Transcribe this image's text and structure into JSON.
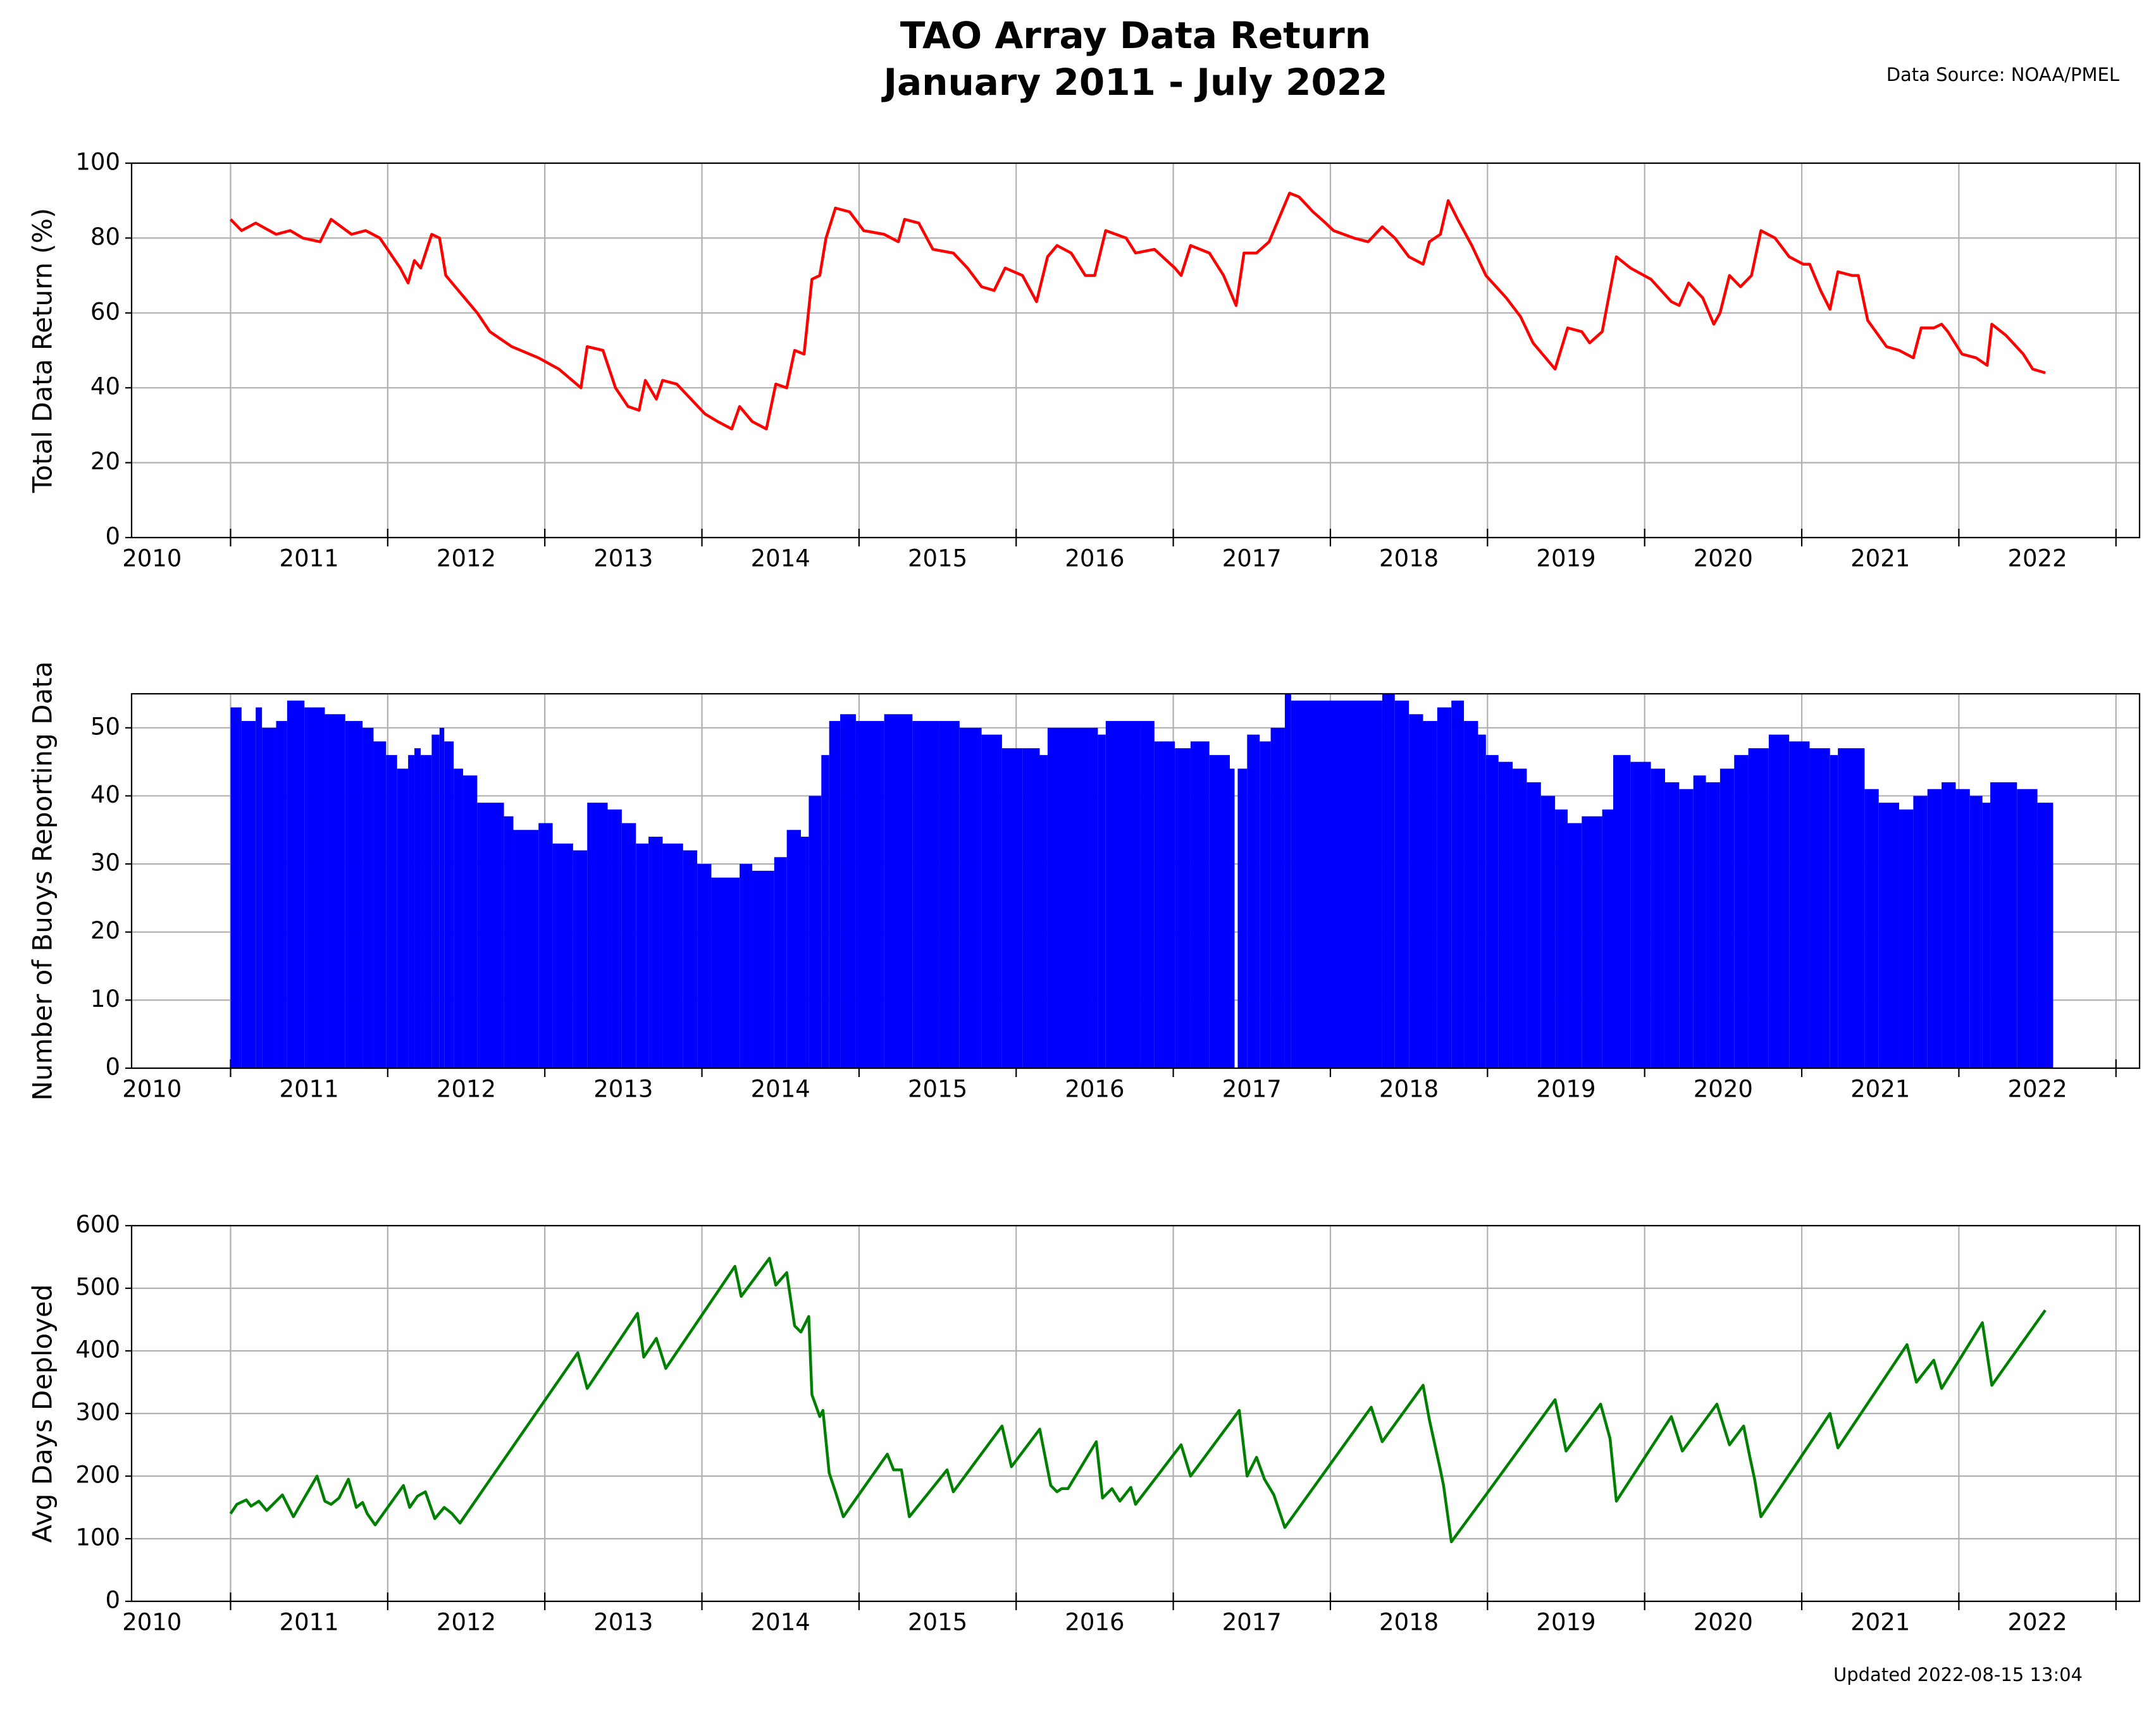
{
  "header": {
    "title": "TAO Array Data Return",
    "subtitle": "January 2011 - July 2022",
    "source": "Data Source: NOAA/PMEL"
  },
  "footer": {
    "updated": "Updated 2022-08-15 13:04"
  },
  "chart_data": [
    {
      "type": "line",
      "ylabel": "Total Data Return (%)",
      "color": "#ff0000",
      "xlim": [
        2010.37,
        2023.15
      ],
      "ylim": [
        0,
        100
      ],
      "yticks": [
        0,
        20,
        40,
        60,
        80,
        100
      ],
      "grid": true,
      "xticks": [
        {
          "value": 2010.5,
          "label": "2010"
        },
        {
          "value": 2011.5,
          "label": "2011"
        },
        {
          "value": 2012.5,
          "label": "2012"
        },
        {
          "value": 2013.5,
          "label": "2013"
        },
        {
          "value": 2014.5,
          "label": "2014"
        },
        {
          "value": 2015.5,
          "label": "2015"
        },
        {
          "value": 2016.5,
          "label": "2016"
        },
        {
          "value": 2017.5,
          "label": "2017"
        },
        {
          "value": 2018.5,
          "label": "2018"
        },
        {
          "value": 2019.5,
          "label": "2019"
        },
        {
          "value": 2020.5,
          "label": "2020"
        },
        {
          "value": 2021.5,
          "label": "2021"
        },
        {
          "value": 2022.5,
          "label": "2022"
        }
      ],
      "xgrid": [
        2011,
        2012,
        2013,
        2014,
        2015,
        2016,
        2017,
        2018,
        2019,
        2020,
        2021,
        2022,
        2023
      ],
      "x": [
        2011.0,
        2011.07,
        2011.16,
        2011.29,
        2011.38,
        2011.46,
        2011.57,
        2011.64,
        2011.77,
        2011.86,
        2011.95,
        2012.08,
        2012.13,
        2012.17,
        2012.21,
        2012.28,
        2012.33,
        2012.37,
        2012.43,
        2012.57,
        2012.65,
        2012.79,
        2012.96,
        2013.09,
        2013.23,
        2013.27,
        2013.37,
        2013.45,
        2013.53,
        2013.6,
        2013.64,
        2013.71,
        2013.75,
        2013.84,
        2013.93,
        2014.02,
        2014.1,
        2014.19,
        2014.24,
        2014.32,
        2014.41,
        2014.47,
        2014.54,
        2014.59,
        2014.65,
        2014.7,
        2014.75,
        2014.79,
        2014.85,
        2014.94,
        2015.03,
        2015.16,
        2015.25,
        2015.29,
        2015.38,
        2015.47,
        2015.6,
        2015.69,
        2015.78,
        2015.86,
        2015.93,
        2016.04,
        2016.13,
        2016.2,
        2016.26,
        2016.35,
        2016.44,
        2016.5,
        2016.57,
        2016.7,
        2016.76,
        2016.88,
        2017.01,
        2017.05,
        2017.11,
        2017.23,
        2017.32,
        2017.4,
        2017.45,
        2017.53,
        2017.61,
        2017.67,
        2017.74,
        2017.8,
        2017.89,
        2017.97,
        2018.02,
        2018.15,
        2018.24,
        2018.33,
        2018.41,
        2018.5,
        2018.59,
        2018.63,
        2018.7,
        2018.75,
        2018.81,
        2018.9,
        2018.99,
        2019.12,
        2019.21,
        2019.29,
        2019.43,
        2019.51,
        2019.6,
        2019.65,
        2019.73,
        2019.82,
        2019.91,
        2020.04,
        2020.17,
        2020.22,
        2020.28,
        2020.37,
        2020.44,
        2020.48,
        2020.54,
        2020.61,
        2020.68,
        2020.74,
        2020.83,
        2020.92,
        2021.01,
        2021.05,
        2021.12,
        2021.18,
        2021.23,
        2021.32,
        2021.36,
        2021.42,
        2021.54,
        2021.62,
        2021.71,
        2021.76,
        2021.84,
        2021.89,
        2021.93,
        2022.02,
        2022.11,
        2022.18,
        2022.21,
        2022.3,
        2022.41,
        2022.47,
        2022.55
      ],
      "values": [
        85,
        82,
        84,
        81,
        82,
        80,
        79,
        85,
        81,
        82,
        80,
        72,
        68,
        74,
        72,
        81,
        80,
        70,
        67,
        60,
        55,
        51,
        48,
        45,
        40,
        51,
        50,
        40,
        35,
        34,
        42,
        37,
        42,
        41,
        37,
        33,
        31,
        29,
        35,
        31,
        29,
        41,
        40,
        50,
        49,
        69,
        70,
        80,
        88,
        87,
        82,
        81,
        79,
        85,
        84,
        77,
        76,
        72,
        67,
        66,
        72,
        70,
        63,
        75,
        78,
        76,
        70,
        70,
        82,
        80,
        76,
        77,
        72,
        70,
        78,
        76,
        70,
        62,
        76,
        76,
        79,
        85,
        92,
        91,
        87,
        84,
        82,
        80,
        79,
        83,
        80,
        75,
        73,
        79,
        81,
        90,
        85,
        78,
        70,
        64,
        59,
        52,
        45,
        56,
        55,
        52,
        55,
        75,
        72,
        69,
        63,
        62,
        68,
        64,
        57,
        60,
        70,
        67,
        70,
        82,
        80,
        75,
        73,
        73,
        66,
        61,
        71,
        70,
        70,
        58,
        51,
        50,
        48,
        56,
        56,
        57,
        55,
        49,
        48,
        46,
        57,
        54,
        49,
        45,
        44
      ]
    },
    {
      "type": "bar",
      "ylabel": "Number of Buoys Reporting Data",
      "color": "#0000ff",
      "xlim": [
        2010.37,
        2023.15
      ],
      "ylim": [
        0,
        55
      ],
      "yticks": [
        0,
        10,
        20,
        30,
        40,
        50
      ],
      "grid": true,
      "xticks": [
        {
          "value": 2010.5,
          "label": "2010"
        },
        {
          "value": 2011.5,
          "label": "2011"
        },
        {
          "value": 2012.5,
          "label": "2012"
        },
        {
          "value": 2013.5,
          "label": "2013"
        },
        {
          "value": 2014.5,
          "label": "2014"
        },
        {
          "value": 2015.5,
          "label": "2015"
        },
        {
          "value": 2016.5,
          "label": "2016"
        },
        {
          "value": 2017.5,
          "label": "2017"
        },
        {
          "value": 2018.5,
          "label": "2018"
        },
        {
          "value": 2019.5,
          "label": "2019"
        },
        {
          "value": 2020.5,
          "label": "2020"
        },
        {
          "value": 2021.5,
          "label": "2021"
        },
        {
          "value": 2022.5,
          "label": "2022"
        }
      ],
      "xgrid": [
        2011,
        2012,
        2013,
        2014,
        2015,
        2016,
        2017,
        2018,
        2019,
        2020,
        2021,
        2022,
        2023
      ],
      "x": [
        2011.0,
        2011.07,
        2011.16,
        2011.2,
        2011.29,
        2011.36,
        2011.47,
        2011.6,
        2011.73,
        2011.84,
        2011.91,
        2011.99,
        2012.06,
        2012.13,
        2012.17,
        2012.21,
        2012.28,
        2012.33,
        2012.36,
        2012.42,
        2012.48,
        2012.57,
        2012.74,
        2012.8,
        2012.96,
        2013.05,
        2013.18,
        2013.27,
        2013.4,
        2013.49,
        2013.58,
        2013.66,
        2013.75,
        2013.88,
        2013.97,
        2014.06,
        2014.24,
        2014.32,
        2014.46,
        2014.54,
        2014.63,
        2014.68,
        2014.76,
        2014.81,
        2014.88,
        2014.98,
        2015.16,
        2015.34,
        2015.51,
        2015.64,
        2015.78,
        2015.91,
        2016.04,
        2016.15,
        2016.2,
        2016.48,
        2016.52,
        2016.57,
        2016.79,
        2016.88,
        2017.01,
        2017.11,
        2017.23,
        2017.36,
        2017.39,
        2017.41,
        2017.47,
        2017.55,
        2017.62,
        2017.71,
        2017.75,
        2018.33,
        2018.41,
        2018.5,
        2018.59,
        2018.68,
        2018.77,
        2018.85,
        2018.94,
        2018.99,
        2019.07,
        2019.16,
        2019.25,
        2019.34,
        2019.43,
        2019.51,
        2019.6,
        2019.73,
        2019.8,
        2019.91,
        2020.04,
        2020.13,
        2020.22,
        2020.31,
        2020.39,
        2020.48,
        2020.57,
        2020.66,
        2020.79,
        2020.92,
        2021.05,
        2021.18,
        2021.23,
        2021.4,
        2021.49,
        2021.62,
        2021.71,
        2021.8,
        2021.89,
        2021.98,
        2022.07,
        2022.15,
        2022.2,
        2022.37,
        2022.5,
        2022.55
      ],
      "values": [
        53,
        51,
        53,
        50,
        51,
        54,
        53,
        52,
        51,
        50,
        48,
        46,
        44,
        46,
        47,
        46,
        49,
        50,
        48,
        44,
        43,
        39,
        37,
        35,
        36,
        33,
        32,
        39,
        38,
        36,
        33,
        34,
        33,
        32,
        30,
        28,
        30,
        29,
        31,
        35,
        34,
        40,
        46,
        51,
        52,
        51,
        52,
        51,
        51,
        50,
        49,
        47,
        47,
        46,
        50,
        50,
        49,
        51,
        51,
        48,
        47,
        48,
        46,
        44,
        0,
        44,
        49,
        48,
        50,
        55,
        54,
        55,
        54,
        52,
        51,
        53,
        54,
        51,
        49,
        46,
        45,
        44,
        42,
        40,
        38,
        36,
        37,
        38,
        46,
        45,
        44,
        42,
        41,
        43,
        42,
        44,
        46,
        47,
        49,
        48,
        47,
        46,
        47,
        41,
        39,
        38,
        40,
        41,
        42,
        41,
        40,
        39,
        42,
        41,
        39,
        39
      ]
    },
    {
      "type": "line",
      "ylabel": "Avg Days Deployed",
      "color": "#008000",
      "xlim": [
        2010.37,
        2023.15
      ],
      "ylim": [
        0,
        600
      ],
      "yticks": [
        0,
        100,
        200,
        300,
        400,
        500,
        600
      ],
      "grid": true,
      "xticks": [
        {
          "value": 2010.5,
          "label": "2010"
        },
        {
          "value": 2011.5,
          "label": "2011"
        },
        {
          "value": 2012.5,
          "label": "2012"
        },
        {
          "value": 2013.5,
          "label": "2013"
        },
        {
          "value": 2014.5,
          "label": "2014"
        },
        {
          "value": 2015.5,
          "label": "2015"
        },
        {
          "value": 2016.5,
          "label": "2016"
        },
        {
          "value": 2017.5,
          "label": "2017"
        },
        {
          "value": 2018.5,
          "label": "2018"
        },
        {
          "value": 2019.5,
          "label": "2019"
        },
        {
          "value": 2020.5,
          "label": "2020"
        },
        {
          "value": 2021.5,
          "label": "2021"
        },
        {
          "value": 2022.5,
          "label": "2022"
        }
      ],
      "xgrid": [
        2011,
        2012,
        2013,
        2014,
        2015,
        2016,
        2017,
        2018,
        2019,
        2020,
        2021,
        2022,
        2023
      ],
      "x": [
        2011.0,
        2011.04,
        2011.1,
        2011.13,
        2011.18,
        2011.23,
        2011.29,
        2011.33,
        2011.4,
        2011.55,
        2011.6,
        2011.64,
        2011.69,
        2011.75,
        2011.8,
        2011.84,
        2011.87,
        2011.92,
        2012.1,
        2012.14,
        2012.19,
        2012.24,
        2012.3,
        2012.36,
        2012.41,
        2012.46,
        2013.21,
        2013.27,
        2013.59,
        2013.63,
        2013.71,
        2013.77,
        2014.21,
        2014.25,
        2014.43,
        2014.47,
        2014.54,
        2014.59,
        2014.63,
        2014.68,
        2014.7,
        2014.75,
        2014.77,
        2014.81,
        2014.85,
        2014.9,
        2015.18,
        2015.22,
        2015.27,
        2015.32,
        2015.56,
        2015.6,
        2015.91,
        2015.97,
        2016.15,
        2016.22,
        2016.26,
        2016.29,
        2016.33,
        2016.51,
        2016.55,
        2016.61,
        2016.66,
        2016.73,
        2016.76,
        2017.05,
        2017.11,
        2017.42,
        2017.47,
        2017.53,
        2017.58,
        2017.64,
        2017.71,
        2018.26,
        2018.33,
        2018.59,
        2018.63,
        2018.7,
        2018.72,
        2018.77,
        2018.99,
        2019.43,
        2019.5,
        2019.72,
        2019.78,
        2019.82,
        2020.17,
        2020.24,
        2020.46,
        2020.54,
        2020.63,
        2020.67,
        2020.7,
        2020.74,
        2021.18,
        2021.23,
        2021.67,
        2021.73,
        2021.84,
        2021.89,
        2022.15,
        2022.21,
        2022.55
      ],
      "values": [
        140,
        155,
        162,
        152,
        160,
        145,
        160,
        170,
        135,
        200,
        160,
        155,
        165,
        195,
        150,
        158,
        140,
        122,
        185,
        150,
        168,
        175,
        132,
        150,
        140,
        125,
        397,
        340,
        460,
        390,
        420,
        372,
        535,
        487,
        548,
        505,
        525,
        440,
        430,
        455,
        330,
        295,
        305,
        205,
        175,
        135,
        235,
        210,
        210,
        135,
        210,
        175,
        280,
        215,
        275,
        185,
        175,
        180,
        180,
        255,
        165,
        180,
        160,
        182,
        155,
        250,
        200,
        305,
        200,
        230,
        195,
        170,
        118,
        310,
        255,
        345,
        290,
        210,
        185,
        95,
        170,
        322,
        240,
        315,
        260,
        160,
        295,
        240,
        315,
        250,
        280,
        230,
        195,
        135,
        300,
        245,
        410,
        350,
        385,
        340,
        445,
        345,
        465
      ]
    }
  ]
}
